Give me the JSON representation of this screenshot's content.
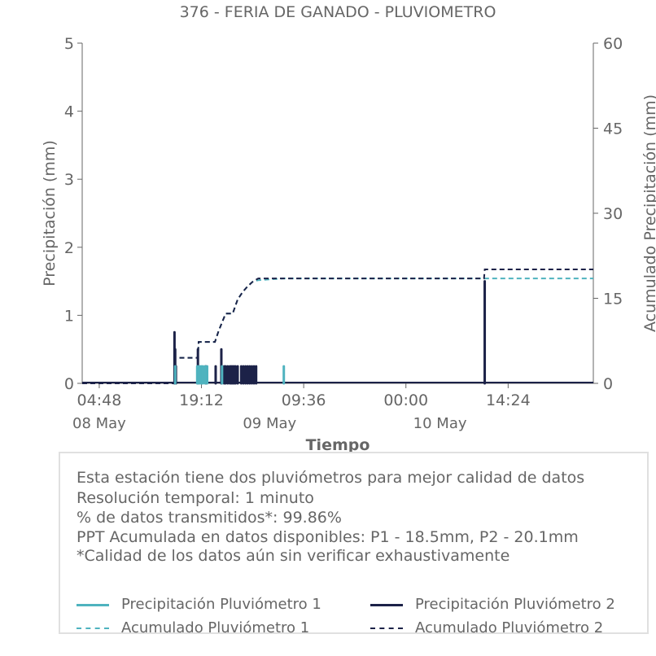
{
  "colors": {
    "p1": "#4fb3bf",
    "p2": "#1c2248",
    "axis": "#666666"
  },
  "chart_data": {
    "type": "line",
    "title": "376 - FERIA DE GANADO - PLUVIOMETRO",
    "xlabel": "Tiempo",
    "ylabel": "Precipitación (mm)",
    "ylabel_right": "Acumulado Precipitación (mm)",
    "x_range_hours": [
      0,
      72
    ],
    "ylim": [
      0,
      5
    ],
    "ylim_right": [
      0,
      60
    ],
    "yticks": [
      "0",
      "1",
      "2",
      "3",
      "4",
      "5"
    ],
    "yticks_right": [
      "0",
      "15",
      "30",
      "45",
      "60"
    ],
    "xticks": [
      {
        "hours": 2.4,
        "label": "04:48"
      },
      {
        "hours": 16.8,
        "label": "19:12"
      },
      {
        "hours": 31.2,
        "label": "09:36"
      },
      {
        "hours": 45.6,
        "label": "00:00"
      },
      {
        "hours": 60.0,
        "label": "14:24"
      }
    ],
    "date_labels": [
      {
        "hours": 2.4,
        "label": "08 May"
      },
      {
        "hours": 26.4,
        "label": "09 May"
      },
      {
        "hours": 50.4,
        "label": "10 May"
      }
    ],
    "series": [
      {
        "name": "Precipitación Pluviómetro 1",
        "kind": "bars",
        "x": [
          13.1,
          16.2,
          16.4,
          16.6,
          16.8,
          17.0,
          17.3,
          17.6,
          19.7,
          28.4
        ],
        "values": [
          0.25,
          0.25,
          0.25,
          0.25,
          0.25,
          0.25,
          0.25,
          0.25,
          0.25,
          0.25
        ]
      },
      {
        "name": "Precipitación Pluviómetro 2",
        "kind": "bars",
        "x": [
          13.0,
          13.1,
          13.2,
          16.3,
          17.4,
          18.8,
          19.6,
          20.0,
          20.2,
          20.5,
          20.8,
          21.0,
          21.2,
          21.4,
          21.6,
          21.9,
          22.4,
          22.7,
          23.0,
          23.3,
          23.6,
          23.9,
          24.2,
          24.5,
          56.7
        ],
        "values": [
          0.75,
          0.5,
          0.25,
          0.5,
          0.25,
          0.25,
          0.5,
          0.25,
          0.25,
          0.25,
          0.25,
          0.25,
          0.25,
          0.25,
          0.25,
          0.25,
          0.25,
          0.25,
          0.25,
          0.25,
          0.25,
          0.25,
          0.25,
          0.25,
          1.5
        ]
      },
      {
        "name": "Acumulado Pluviómetro 1",
        "kind": "cumulative",
        "x": [
          0,
          13.0,
          13.1,
          16.3,
          16.4,
          18.7,
          19.2,
          20.2,
          21.2,
          21.9,
          22.6,
          23.3,
          24.0,
          24.8,
          28.4,
          72
        ],
        "values": [
          0,
          0,
          4.5,
          4.5,
          7.3,
          7.3,
          9.2,
          12.3,
          12.3,
          14.8,
          16.1,
          17.1,
          17.9,
          18.2,
          18.5,
          18.5
        ]
      },
      {
        "name": "Acumulado Pluviómetro 2",
        "kind": "cumulative",
        "x": [
          0,
          13.0,
          13.1,
          16.3,
          16.4,
          18.7,
          19.2,
          20.2,
          21.2,
          21.9,
          22.6,
          23.3,
          24.0,
          24.8,
          56.6,
          56.7,
          72
        ],
        "values": [
          0,
          0,
          4.5,
          4.5,
          7.3,
          7.3,
          9.2,
          12.3,
          12.3,
          14.8,
          16.1,
          17.1,
          17.9,
          18.5,
          18.5,
          20.1,
          20.1
        ]
      }
    ]
  },
  "notes": [
    "Esta estación tiene dos pluviómetros para mejor calidad de datos",
    "Resolución temporal: 1 minuto",
    "% de datos transmitidos*: 99.86%",
    "PPT Acumulada en datos disponibles: P1 - 18.5mm, P2 - 20.1mm",
    "*Calidad de los datos aún sin verificar exhaustivamente"
  ],
  "legend": [
    {
      "label": "Precipitación Pluviómetro 1",
      "style": "solid",
      "color": "#4fb3bf"
    },
    {
      "label": "Precipitación Pluviómetro 2",
      "style": "solid",
      "color": "#1c2248"
    },
    {
      "label": "Acumulado Pluviómetro 1",
      "style": "dashed",
      "color": "#4fb3bf"
    },
    {
      "label": "Acumulado Pluviómetro 2",
      "style": "dashed",
      "color": "#1c2248"
    }
  ]
}
